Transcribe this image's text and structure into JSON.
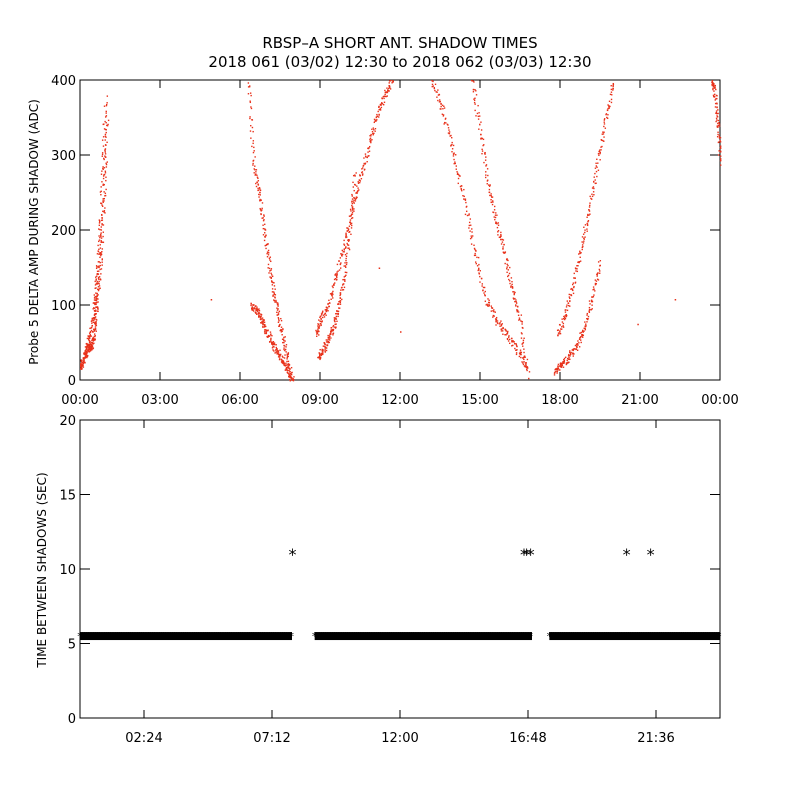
{
  "title_line1": "RBSP–A SHORT ANT. SHADOW TIMES",
  "title_line2": "2018 061 (03/02) 12:30 to 2018 062 (03/03) 12:30",
  "chart_data": [
    {
      "type": "scatter",
      "ylabel": "Probe 5 DELTA AMP DURING SHADOW (ADC)",
      "xlim": [
        0,
        24
      ],
      "ylim": [
        0,
        400
      ],
      "x_tick_labels": [
        "00:00",
        "03:00",
        "06:00",
        "09:00",
        "12:00",
        "15:00",
        "18:00",
        "21:00",
        "00:00"
      ],
      "x_tick_values": [
        0,
        3,
        6,
        9,
        12,
        15,
        18,
        21,
        24
      ],
      "y_tick_labels": [
        "0",
        "100",
        "200",
        "300",
        "400"
      ],
      "y_tick_values": [
        0,
        100,
        200,
        300,
        400
      ],
      "marker_color": "#e8311a",
      "series": [
        {
          "x": [
            0.0,
            0.1,
            0.2,
            0.3,
            0.4,
            0.5,
            0.6,
            0.7,
            0.8,
            0.9,
            1.0
          ],
          "y": [
            18,
            25,
            35,
            42,
            45,
            55,
            90,
            130,
            180,
            260,
            350
          ]
        },
        {
          "x": [
            0.2,
            0.35,
            0.5,
            0.55,
            0.65,
            0.75,
            0.85,
            0.95
          ],
          "y": [
            40,
            60,
            85,
            110,
            150,
            210,
            290,
            380
          ]
        },
        {
          "x": [
            6.4,
            6.6,
            6.8,
            7.0,
            7.2,
            7.4,
            7.6,
            7.8,
            7.95
          ],
          "y": [
            100,
            95,
            80,
            65,
            50,
            38,
            25,
            12,
            0
          ]
        },
        {
          "x": [
            6.3,
            6.5,
            6.7,
            6.9,
            7.1,
            7.3,
            7.5,
            7.7,
            7.9
          ],
          "y": [
            400,
            290,
            250,
            200,
            150,
            110,
            75,
            40,
            5
          ]
        },
        {
          "x": [
            8.9,
            9.1,
            9.3,
            9.5,
            9.7,
            9.9,
            10.1,
            10.3
          ],
          "y": [
            30,
            40,
            55,
            70,
            100,
            140,
            200,
            280
          ]
        },
        {
          "x": [
            8.85,
            9.0,
            9.3,
            9.6,
            9.9,
            10.2,
            10.5,
            10.8,
            11.1,
            11.4,
            11.7
          ],
          "y": [
            60,
            80,
            100,
            140,
            180,
            230,
            270,
            310,
            350,
            380,
            400
          ]
        },
        {
          "x": [
            13.2,
            13.6,
            14.0,
            14.4,
            14.8,
            15.2,
            15.6,
            16.0,
            16.4,
            16.8
          ],
          "y": [
            400,
            360,
            300,
            240,
            170,
            110,
            80,
            60,
            40,
            15
          ]
        },
        {
          "x": [
            14.7,
            15.0,
            15.3,
            15.6,
            15.9,
            16.2,
            16.5,
            16.8
          ],
          "y": [
            400,
            330,
            260,
            210,
            170,
            120,
            80,
            5
          ]
        },
        {
          "x": [
            17.8,
            18.0,
            18.3,
            18.6,
            18.9,
            19.2,
            19.5
          ],
          "y": [
            10,
            20,
            30,
            45,
            70,
            110,
            160
          ]
        },
        {
          "x": [
            17.9,
            18.2,
            18.5,
            18.8,
            19.1,
            19.4,
            19.7,
            20.0
          ],
          "y": [
            60,
            90,
            130,
            180,
            230,
            290,
            350,
            400
          ]
        },
        {
          "x": [
            23.7,
            23.8,
            23.9,
            24.0
          ],
          "y": [
            400,
            380,
            340,
            290
          ]
        }
      ],
      "isolated_points": [
        {
          "x": 4.9,
          "y": 108
        },
        {
          "x": 11.2,
          "y": 150
        },
        {
          "x": 12.0,
          "y": 65
        },
        {
          "x": 22.3,
          "y": 108
        },
        {
          "x": 20.9,
          "y": 75
        }
      ]
    },
    {
      "type": "scatter",
      "ylabel": "TIME BETWEEN SHADOWS (SEC)",
      "xlim": [
        0,
        24
      ],
      "ylim": [
        0,
        20
      ],
      "x_tick_labels": [
        "02:24",
        "07:12",
        "12:00",
        "16:48",
        "21:36"
      ],
      "x_tick_values": [
        2.4,
        7.2,
        12.0,
        16.8,
        21.6
      ],
      "y_tick_labels": [
        "0",
        "5",
        "10",
        "15",
        "20"
      ],
      "y_tick_values": [
        0,
        5,
        10,
        15,
        20
      ],
      "marker": "*",
      "marker_color": "#000000",
      "baseline_value": 5.5,
      "baseline_segments": [
        [
          0.0,
          7.95
        ],
        [
          8.8,
          16.95
        ],
        [
          17.6,
          24.0
        ]
      ],
      "outliers": [
        {
          "x": 7.97,
          "y": 11
        },
        {
          "x": 16.65,
          "y": 11
        },
        {
          "x": 16.75,
          "y": 11
        },
        {
          "x": 16.9,
          "y": 11
        },
        {
          "x": 20.5,
          "y": 11
        },
        {
          "x": 21.4,
          "y": 11
        }
      ]
    }
  ]
}
